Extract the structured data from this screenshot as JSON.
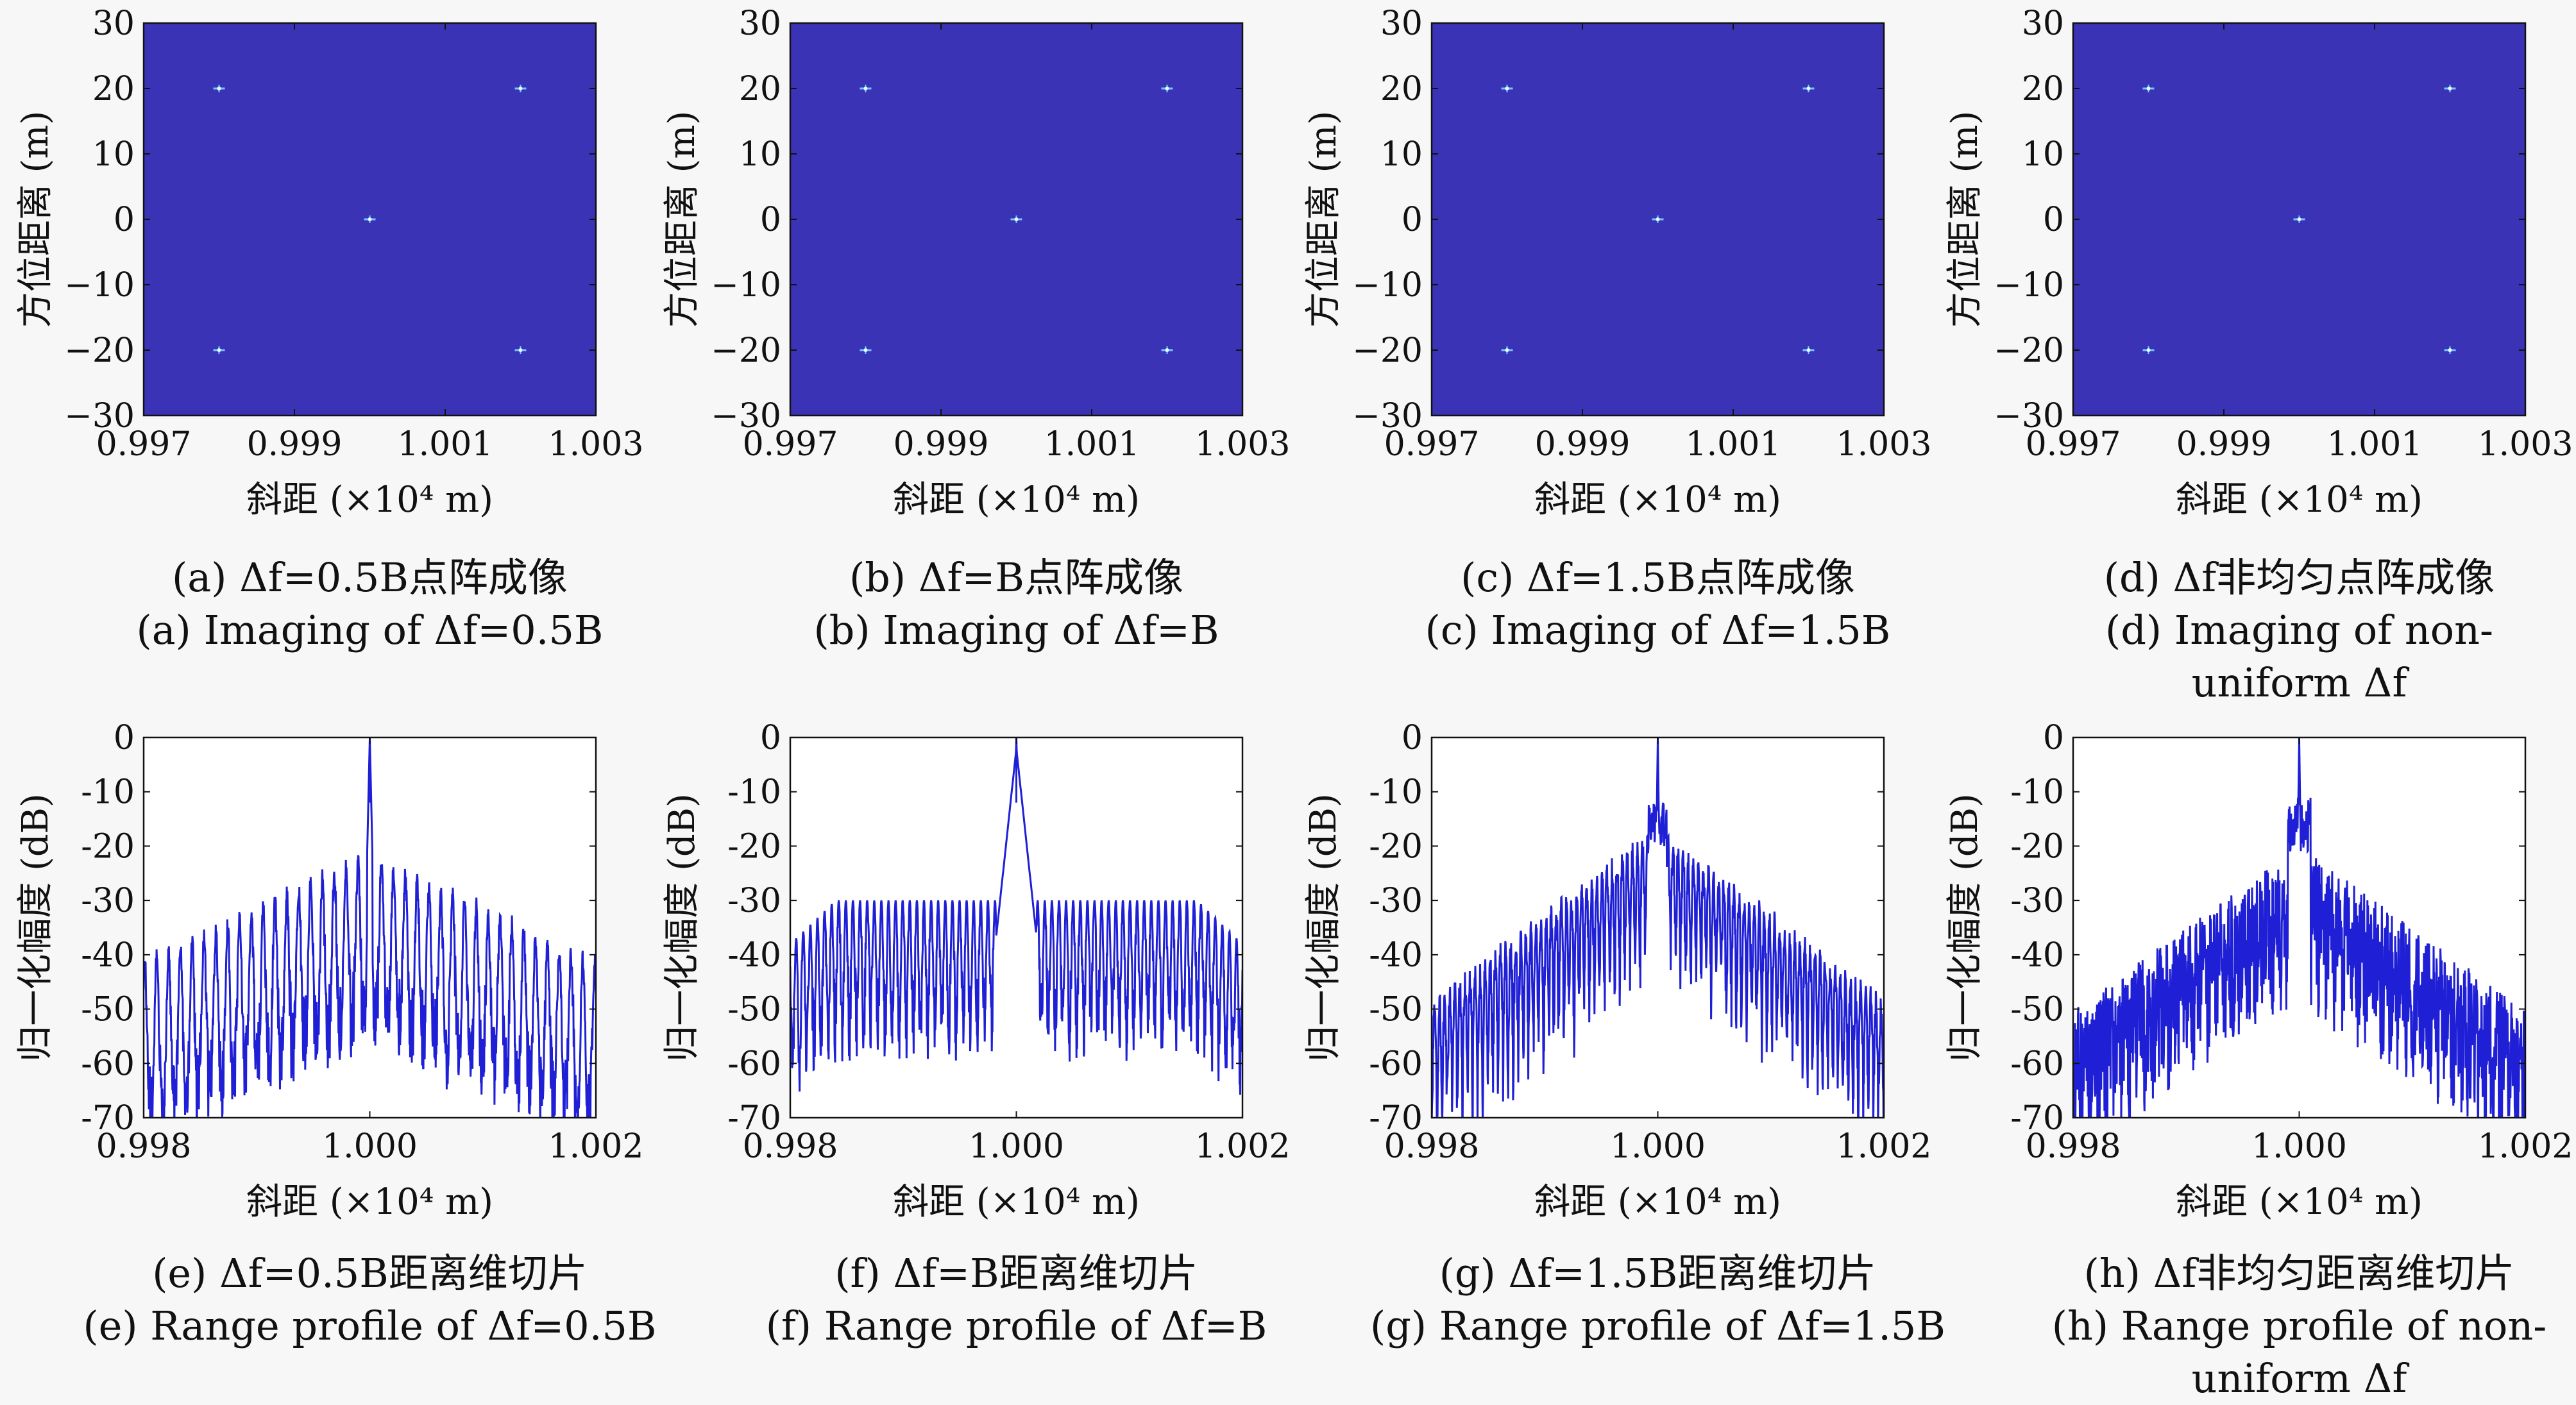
{
  "colors": {
    "image_background": "#3b33b6",
    "target": "#6ec8ff",
    "target_core": "#e9f7ff",
    "line": "#1f1fd6",
    "axis": "#111111",
    "page": "#f7f7f7"
  },
  "chart_data": [
    {
      "id": "a",
      "type": "heatmap",
      "row": 0,
      "col": 0,
      "xlabel": "斜距 (×10⁴ m)",
      "ylabel": "方位距离 (m)",
      "xlim": [
        0.997,
        1.003
      ],
      "ylim": [
        -30,
        30
      ],
      "xticks": [
        "0.997",
        "0.999",
        "1.001",
        "1.003"
      ],
      "yticks": [
        "30",
        "20",
        "10",
        "0",
        "−10",
        "−20",
        "−30"
      ],
      "points": [
        {
          "x": 0.998,
          "y": 20
        },
        {
          "x": 1.002,
          "y": 20
        },
        {
          "x": 1.0,
          "y": 0
        },
        {
          "x": 0.998,
          "y": -20
        },
        {
          "x": 1.002,
          "y": -20
        }
      ],
      "caption_cn": "(a) Δf=0.5B点阵成像",
      "caption_en": [
        "(a) Imaging of Δf=0.5B"
      ]
    },
    {
      "id": "b",
      "type": "heatmap",
      "row": 0,
      "col": 1,
      "xlabel": "斜距 (×10⁴ m)",
      "ylabel": "方位距离 (m)",
      "xlim": [
        0.997,
        1.003
      ],
      "ylim": [
        -30,
        30
      ],
      "xticks": [
        "0.997",
        "0.999",
        "1.001",
        "1.003"
      ],
      "yticks": [
        "30",
        "20",
        "10",
        "0",
        "−10",
        "−20",
        "−30"
      ],
      "points": [
        {
          "x": 0.998,
          "y": 20
        },
        {
          "x": 1.002,
          "y": 20
        },
        {
          "x": 1.0,
          "y": 0
        },
        {
          "x": 0.998,
          "y": -20
        },
        {
          "x": 1.002,
          "y": -20
        }
      ],
      "caption_cn": "(b) Δf=B点阵成像",
      "caption_en": [
        "(b) Imaging of Δf=B"
      ]
    },
    {
      "id": "c",
      "type": "heatmap",
      "row": 0,
      "col": 2,
      "xlabel": "斜距 (×10⁴ m)",
      "ylabel": "方位距离 (m)",
      "xlim": [
        0.997,
        1.003
      ],
      "ylim": [
        -30,
        30
      ],
      "xticks": [
        "0.997",
        "0.999",
        "1.001",
        "1.003"
      ],
      "yticks": [
        "30",
        "20",
        "10",
        "0",
        "−10",
        "−20",
        "−30"
      ],
      "points": [
        {
          "x": 0.998,
          "y": 20
        },
        {
          "x": 1.002,
          "y": 20
        },
        {
          "x": 1.0,
          "y": 0
        },
        {
          "x": 0.998,
          "y": -20
        },
        {
          "x": 1.002,
          "y": -20
        }
      ],
      "caption_cn": "(c) Δf=1.5B点阵成像",
      "caption_en": [
        "(c) Imaging of Δf=1.5B"
      ]
    },
    {
      "id": "d",
      "type": "heatmap",
      "row": 0,
      "col": 3,
      "xlabel": "斜距 (×10⁴ m)",
      "ylabel": "方位距离 (m)",
      "xlim": [
        0.997,
        1.003
      ],
      "ylim": [
        -30,
        30
      ],
      "xticks": [
        "0.997",
        "0.999",
        "1.001",
        "1.003"
      ],
      "yticks": [
        "30",
        "20",
        "10",
        "0",
        "−10",
        "−20",
        "−30"
      ],
      "points": [
        {
          "x": 0.998,
          "y": 20
        },
        {
          "x": 1.002,
          "y": 20
        },
        {
          "x": 1.0,
          "y": 0
        },
        {
          "x": 0.998,
          "y": -20
        },
        {
          "x": 1.002,
          "y": -20
        }
      ],
      "caption_cn": "(d) Δf非均匀点阵成像",
      "caption_en": [
        "(d) Imaging of non-",
        "uniform Δf"
      ]
    },
    {
      "id": "e",
      "type": "line",
      "row": 1,
      "col": 0,
      "profile": "half",
      "xlabel": "斜距 (×10⁴ m)",
      "ylabel": "归一化幅度 (dB)",
      "xlim": [
        0.998,
        1.002
      ],
      "ylim": [
        -70,
        0
      ],
      "xticks": [
        "0.998",
        "1.000",
        "1.002"
      ],
      "yticks": [
        "0",
        "-10",
        "-20",
        "-30",
        "-40",
        "-50",
        "-60",
        "-70"
      ],
      "peak": {
        "x": 1.0,
        "y": 0
      },
      "caption_cn": "(e) Δf=0.5B距离维切片",
      "caption_en": [
        "(e) Range profile of Δf=0.5B"
      ]
    },
    {
      "id": "f",
      "type": "line",
      "row": 1,
      "col": 1,
      "profile": "equal",
      "xlabel": "斜距 (×10⁴ m)",
      "ylabel": "归一化幅度 (dB)",
      "xlim": [
        0.998,
        1.002
      ],
      "ylim": [
        -70,
        0
      ],
      "xticks": [
        "0.998",
        "1.000",
        "1.002"
      ],
      "yticks": [
        "0",
        "-10",
        "-20",
        "-30",
        "-40",
        "-50",
        "-60",
        "-70"
      ],
      "peak": {
        "x": 1.0,
        "y": 0
      },
      "caption_cn": "(f) Δf=B距离维切片",
      "caption_en": [
        "(f) Range profile of Δf=B"
      ]
    },
    {
      "id": "g",
      "type": "line",
      "row": 1,
      "col": 2,
      "profile": "over",
      "xlabel": "斜距 (×10⁴ m)",
      "ylabel": "归一化幅度 (dB)",
      "xlim": [
        0.998,
        1.002
      ],
      "ylim": [
        -70,
        0
      ],
      "xticks": [
        "0.998",
        "1.000",
        "1.002"
      ],
      "yticks": [
        "0",
        "-10",
        "-20",
        "-30",
        "-40",
        "-50",
        "-60",
        "-70"
      ],
      "peak": {
        "x": 1.0,
        "y": 0
      },
      "caption_cn": "(g) Δf=1.5B距离维切片",
      "caption_en": [
        "(g) Range profile of Δf=1.5B"
      ]
    },
    {
      "id": "h",
      "type": "line",
      "row": 1,
      "col": 3,
      "profile": "nonuniform",
      "xlabel": "斜距 (×10⁴ m)",
      "ylabel": "归一化幅度 (dB)",
      "xlim": [
        0.998,
        1.002
      ],
      "ylim": [
        -70,
        0
      ],
      "xticks": [
        "0.998",
        "1.000",
        "1.002"
      ],
      "yticks": [
        "0",
        "-10",
        "-20",
        "-30",
        "-40",
        "-50",
        "-60",
        "-70"
      ],
      "peak": {
        "x": 1.0,
        "y": 0
      },
      "caption_cn": "(h) Δf非均匀距离维切片",
      "caption_en": [
        "(h) Range profile of non-",
        "uniform Δf"
      ]
    }
  ]
}
